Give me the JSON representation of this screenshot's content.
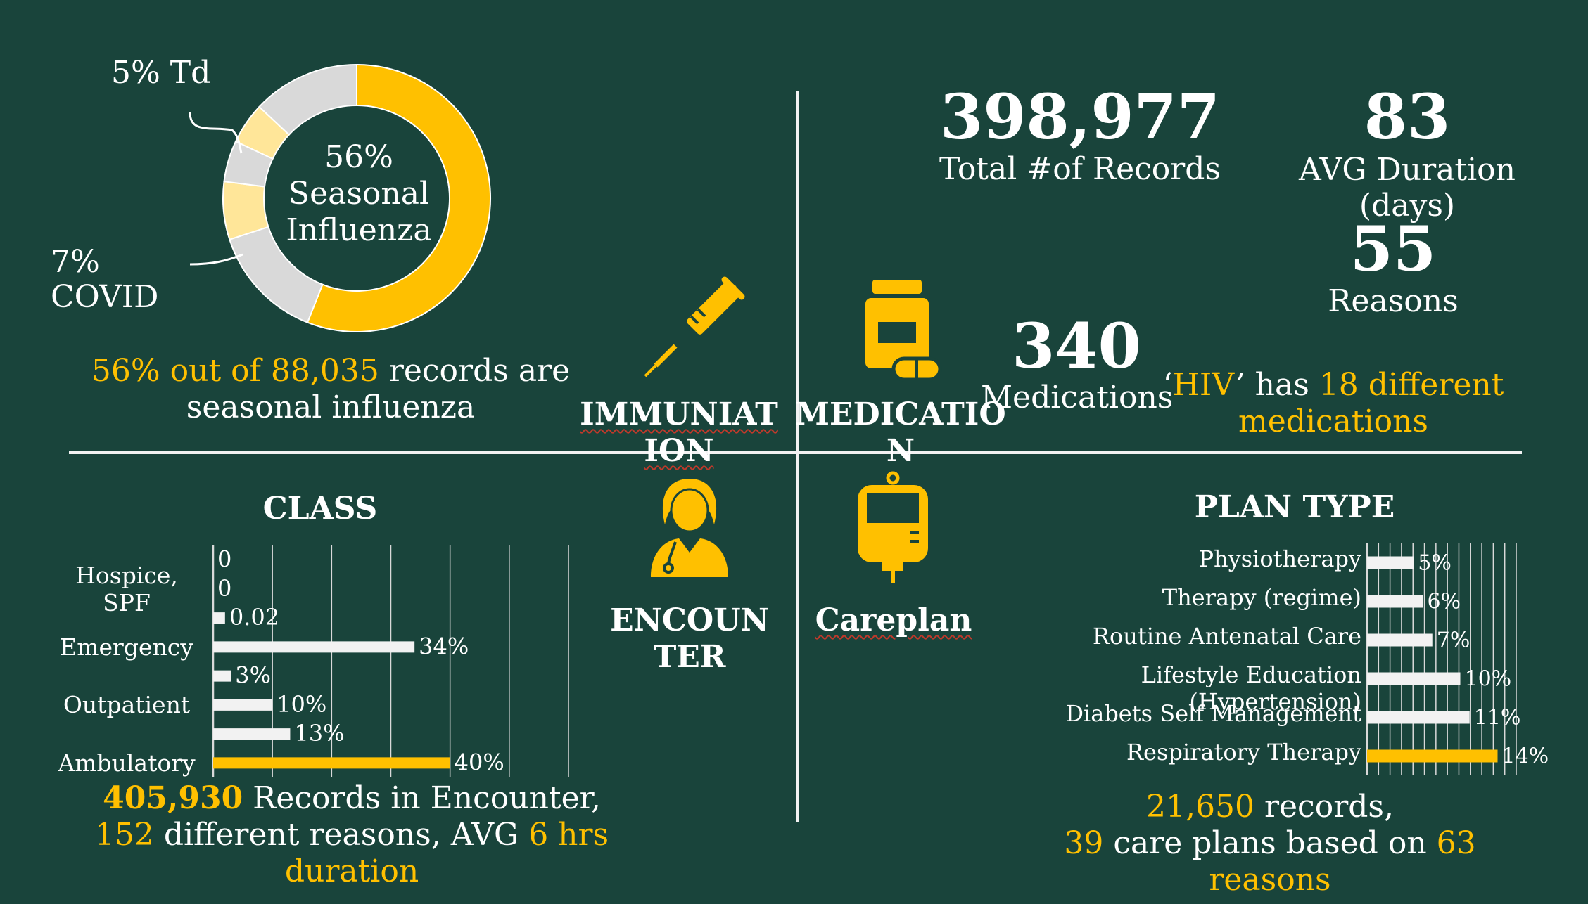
{
  "colors": {
    "background": "#19443b",
    "accent": "#ffc000",
    "light": "#f2f2f2",
    "pale_yellow": "#ffe699",
    "grey": "#d9d9d9"
  },
  "immunization": {
    "donut": {
      "center_text": [
        "56%",
        "Seasonal",
        "Influenza"
      ],
      "callout_td": "5% Td",
      "callout_covid": [
        "7%",
        "COVID"
      ]
    },
    "summary": {
      "pct": "56% out of 88,035",
      "rest1": " records are",
      "rest2": "seasonal influenza"
    }
  },
  "icons": {
    "immunization": {
      "name": "syringe-icon",
      "label": [
        "IMMUNIAT",
        "ION"
      ]
    },
    "medication": {
      "name": "pill-bottle-icon",
      "label": [
        "MEDICATIO",
        "N"
      ]
    },
    "encounter": {
      "name": "nurse-icon",
      "label": [
        "ENCOUN",
        "TER"
      ]
    },
    "careplan": {
      "name": "iv-bag-icon",
      "label": [
        "Careplan"
      ]
    }
  },
  "medication_stats": {
    "total_records": {
      "value": "398,977",
      "label": "Total #of Records"
    },
    "avg_duration": {
      "value": "83",
      "label1": "AVG Duration",
      "label2": "(days)"
    },
    "reasons": {
      "value": "55",
      "label": "Reasons"
    },
    "medications": {
      "value": "340",
      "label": "Medications"
    },
    "hiv": {
      "q1": "‘",
      "name": "HIV",
      "q2": "’ has ",
      "count": "18 different",
      "count2": "medications"
    }
  },
  "encounter_summary": {
    "count": "405,930",
    "text1": " Records in Encounter,",
    "reasons": "152",
    "text2": " different reasons, AVG ",
    "hrs": "6 hrs",
    "text3": "duration"
  },
  "careplan_summary": {
    "records": "21,650",
    "text1": " records,",
    "plans": "39",
    "text2": " care plans based on ",
    "reasons": "63",
    "text3": "reasons"
  },
  "chart_data": [
    {
      "type": "pie",
      "variant": "donut",
      "slices": [
        {
          "label": "Seasonal Influenza",
          "value": 56,
          "color": "#ffc000"
        },
        {
          "label": "",
          "value": 14,
          "color": "#d9d9d9"
        },
        {
          "label": "COVID",
          "value": 7,
          "color": "#ffe699"
        },
        {
          "label": "",
          "value": 5,
          "color": "#d9d9d9"
        },
        {
          "label": "Td",
          "value": 5,
          "color": "#ffe699"
        },
        {
          "label": "",
          "value": 13,
          "color": "#d9d9d9"
        }
      ]
    },
    {
      "type": "bar",
      "orientation": "horizontal",
      "title": "CLASS",
      "categories": [
        "",
        "Hospice, SPF",
        "",
        "Emergency",
        "",
        "Outpatient",
        "",
        "Ambulatory"
      ],
      "values": [
        0,
        0,
        0.02,
        0.34,
        0.03,
        0.1,
        0.13,
        0.4
      ],
      "value_labels": [
        "0",
        "0",
        "0.02",
        "34%",
        "3%",
        "10%",
        "13%",
        "40%"
      ],
      "xlim": [
        0,
        0.6
      ],
      "grid": true,
      "highlight": "Ambulatory"
    },
    {
      "type": "bar",
      "orientation": "horizontal",
      "title": "PLAN TYPE",
      "categories": [
        "Physiotherapy",
        "Therapy (regime)",
        "Routine Antenatal Care",
        "Lifestyle Education (Hypertension)",
        "Diabets Self Management",
        "Respiratory Therapy"
      ],
      "values": [
        5,
        6,
        7,
        10,
        11,
        14
      ],
      "value_labels": [
        "5%",
        "6%",
        "7%",
        "10%",
        "11%",
        "14%"
      ],
      "xlim": [
        0,
        16
      ],
      "grid": true,
      "highlight": "Respiratory Therapy"
    }
  ]
}
